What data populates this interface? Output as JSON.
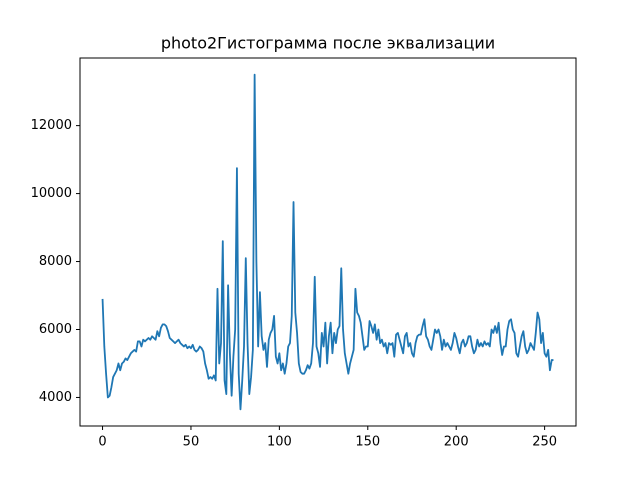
{
  "chart_data": {
    "type": "line",
    "title": "photo2Гистограмма после эквализации",
    "color": "#1f77b4",
    "xlim": [
      -12.75,
      267.75
    ],
    "xticks": [
      0,
      50,
      100,
      150,
      200,
      250
    ],
    "ylim": [
      3160,
      13990
    ],
    "yticks": [
      4000,
      6000,
      8000,
      10000,
      12000
    ],
    "x": [
      0,
      1,
      2,
      3,
      4,
      5,
      6,
      7,
      8,
      9,
      10,
      11,
      12,
      13,
      14,
      15,
      16,
      17,
      18,
      19,
      20,
      21,
      22,
      23,
      24,
      25,
      26,
      27,
      28,
      29,
      30,
      31,
      32,
      33,
      34,
      35,
      36,
      37,
      38,
      39,
      40,
      41,
      42,
      43,
      44,
      45,
      46,
      47,
      48,
      49,
      50,
      51,
      52,
      53,
      54,
      55,
      56,
      57,
      58,
      59,
      60,
      61,
      62,
      63,
      64,
      65,
      66,
      67,
      68,
      69,
      70,
      71,
      72,
      73,
      74,
      75,
      76,
      77,
      78,
      79,
      80,
      81,
      82,
      83,
      84,
      85,
      86,
      87,
      88,
      89,
      90,
      91,
      92,
      93,
      94,
      95,
      96,
      97,
      98,
      99,
      100,
      101,
      102,
      103,
      104,
      105,
      106,
      107,
      108,
      109,
      110,
      111,
      112,
      113,
      114,
      115,
      116,
      117,
      118,
      119,
      120,
      121,
      122,
      123,
      124,
      125,
      126,
      127,
      128,
      129,
      130,
      131,
      132,
      133,
      134,
      135,
      136,
      137,
      138,
      139,
      140,
      141,
      142,
      143,
      144,
      145,
      146,
      147,
      148,
      149,
      150,
      151,
      152,
      153,
      154,
      155,
      156,
      157,
      158,
      159,
      160,
      161,
      162,
      163,
      164,
      165,
      166,
      167,
      168,
      169,
      170,
      171,
      172,
      173,
      174,
      175,
      176,
      177,
      178,
      179,
      180,
      181,
      182,
      183,
      184,
      185,
      186,
      187,
      188,
      189,
      190,
      191,
      192,
      193,
      194,
      195,
      196,
      197,
      198,
      199,
      200,
      201,
      202,
      203,
      204,
      205,
      206,
      207,
      208,
      209,
      210,
      211,
      212,
      213,
      214,
      215,
      216,
      217,
      218,
      219,
      220,
      221,
      222,
      223,
      224,
      225,
      226,
      227,
      228,
      229,
      230,
      231,
      232,
      233,
      234,
      235,
      236,
      237,
      238,
      239,
      240,
      241,
      242,
      243,
      244,
      245,
      246,
      247,
      248,
      249,
      250,
      251,
      252,
      253,
      254,
      255
    ],
    "values": [
      6900,
      5500,
      4700,
      4000,
      4050,
      4300,
      4600,
      4700,
      4800,
      5000,
      4800,
      5000,
      5050,
      5150,
      5100,
      5200,
      5300,
      5350,
      5400,
      5350,
      5650,
      5650,
      5500,
      5700,
      5650,
      5700,
      5750,
      5700,
      5800,
      5750,
      5700,
      5950,
      5800,
      6050,
      6150,
      6150,
      6100,
      5950,
      5750,
      5700,
      5650,
      5600,
      5650,
      5700,
      5600,
      5550,
      5500,
      5550,
      5450,
      5500,
      5450,
      5550,
      5400,
      5350,
      5400,
      5500,
      5450,
      5350,
      5000,
      4800,
      4550,
      4600,
      4550,
      4650,
      4500,
      7200,
      5000,
      5600,
      8600,
      4500,
      4100,
      7300,
      5300,
      4050,
      5200,
      6000,
      10750,
      4700,
      3650,
      4500,
      5500,
      8100,
      5600,
      4100,
      4600,
      5400,
      13500,
      8000,
      5500,
      7100,
      5800,
      5400,
      5600,
      4900,
      5700,
      5900,
      6000,
      6400,
      5200,
      5000,
      5300,
      4800,
      5000,
      4700,
      5000,
      5500,
      5600,
      6400,
      9750,
      6500,
      5900,
      5000,
      4750,
      4700,
      4700,
      4800,
      4950,
      4850,
      5000,
      5600,
      7550,
      5500,
      5300,
      4900,
      5900,
      5500,
      6200,
      5000,
      5800,
      6200,
      5300,
      5900,
      5600,
      6000,
      6100,
      7800,
      6000,
      5300,
      5000,
      4700,
      5000,
      5200,
      5400,
      7200,
      6500,
      6400,
      6200,
      5800,
      5400,
      5500,
      5500,
      6250,
      6100,
      5900,
      6150,
      5700,
      6000,
      5600,
      5700,
      5500,
      5600,
      5300,
      5600,
      5550,
      5600,
      5200,
      5850,
      5900,
      5700,
      5500,
      5300,
      5800,
      5900,
      5500,
      5600,
      5300,
      5200,
      5600,
      5800,
      5850,
      5850,
      6100,
      6300,
      5800,
      5700,
      5500,
      5400,
      5700,
      6000,
      5900,
      6000,
      5800,
      5400,
      5700,
      5500,
      5600,
      5500,
      5400,
      5600,
      5900,
      5750,
      5500,
      5300,
      5600,
      5700,
      5500,
      5600,
      5800,
      5800,
      5500,
      5300,
      5400,
      5700,
      5500,
      5600,
      5500,
      5650,
      5550,
      5600,
      5500,
      6000,
      5900,
      6100,
      5900,
      6200,
      5600,
      5250,
      5500,
      5500,
      6000,
      6250,
      6300,
      6000,
      5900,
      5300,
      5200,
      5500,
      5800,
      5950,
      5500,
      5300,
      5400,
      5600,
      5500,
      5400,
      5900,
      6500,
      6300,
      5600,
      5900,
      5300,
      5200,
      5400,
      4800,
      5100,
      5100
    ]
  }
}
